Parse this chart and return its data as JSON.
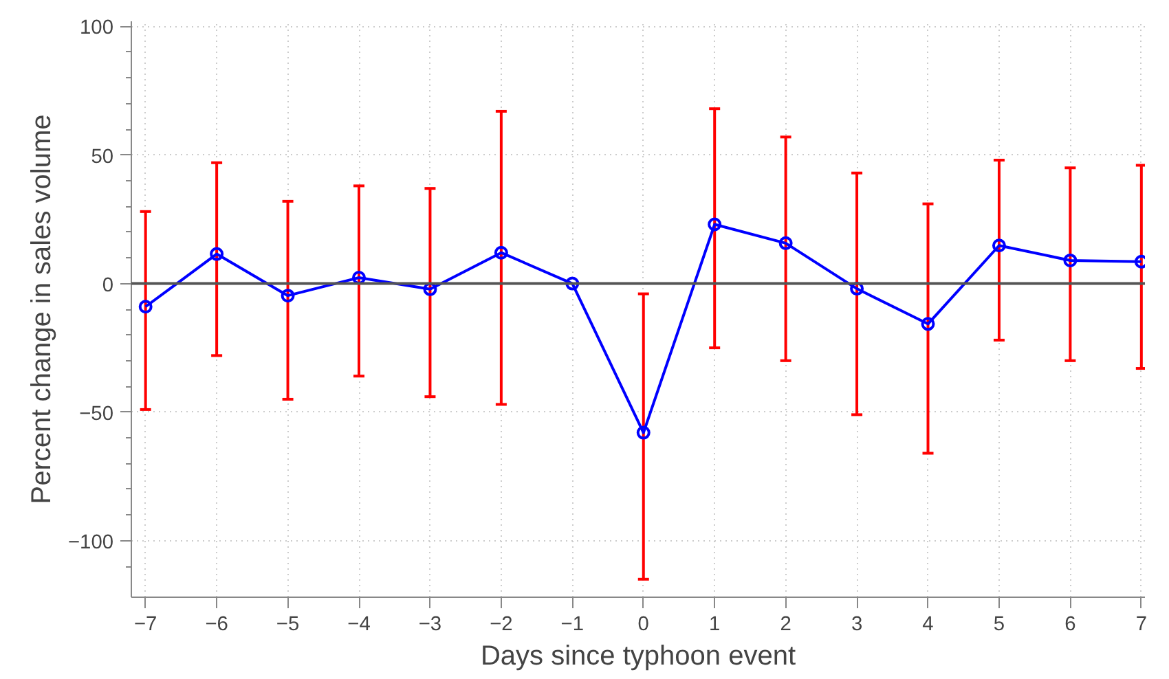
{
  "chart_data": {
    "type": "line",
    "xlabel": "Days since typhoon event",
    "ylabel": "Percent change in sales volume",
    "x": [
      -7,
      -6,
      -5,
      -4,
      -3,
      -2,
      -1,
      0,
      1,
      2,
      3,
      4,
      5,
      6,
      7
    ],
    "series": [
      {
        "color": "#0000ff",
        "values": [
          -9,
          11.5,
          -4.7,
          2.3,
          -2.2,
          12,
          0,
          -58,
          23,
          15.7,
          -2,
          -15.7,
          14.8,
          9,
          8.5
        ],
        "errors": [
          [
            -49,
            28
          ],
          [
            -28,
            47
          ],
          [
            -45,
            32
          ],
          [
            -36,
            38
          ],
          [
            -44,
            37
          ],
          [
            -47,
            67
          ],
          null,
          [
            -115,
            -4
          ],
          [
            -25,
            68
          ],
          [
            -30,
            57
          ],
          [
            -51,
            43
          ],
          [
            -66,
            31
          ],
          [
            -22,
            48
          ],
          [
            -30,
            45
          ],
          [
            -33,
            46
          ]
        ]
      }
    ],
    "xlim": [
      -7.2,
      7.05
    ],
    "ylim": [
      -122,
      102
    ],
    "xticks": [
      {
        "value": -7,
        "label": "−7"
      },
      {
        "value": -6,
        "label": "−6"
      },
      {
        "value": -5,
        "label": "−5"
      },
      {
        "value": -4,
        "label": "−4"
      },
      {
        "value": -3,
        "label": "−3"
      },
      {
        "value": -2,
        "label": "−2"
      },
      {
        "value": -1,
        "label": "−1"
      },
      0,
      1,
      2,
      3,
      4,
      5,
      6,
      7
    ],
    "yticks": [
      {
        "value": -100,
        "label": "−100"
      },
      {
        "value": -50,
        "label": "−50"
      },
      0,
      50,
      100
    ],
    "ref_lines": [
      {
        "axis": "y",
        "value": 0,
        "color": "#555555"
      }
    ],
    "grid": true,
    "marker": "circle",
    "line_style": "solid"
  }
}
